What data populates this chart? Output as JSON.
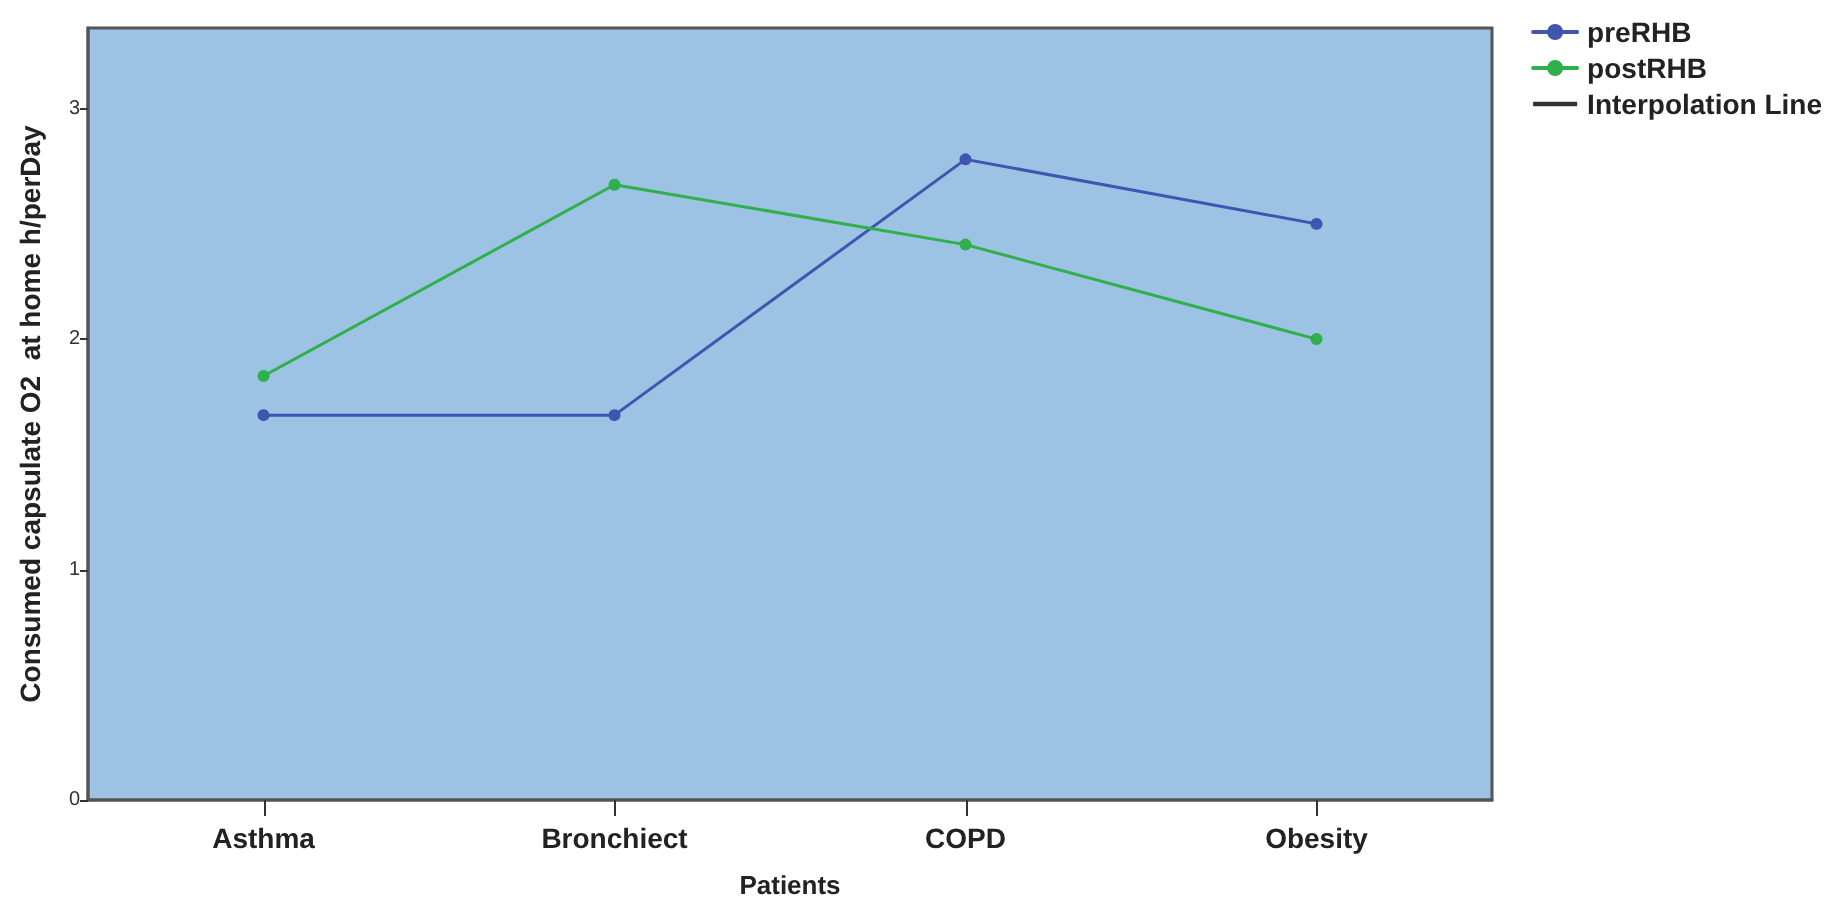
{
  "chart_data": {
    "type": "line",
    "xlabel": "Patients",
    "ylabel": "Consumed capsulate O2  at home h/perDay",
    "categories": [
      "Asthma",
      "Bronchiect",
      "COPD",
      "Obesity"
    ],
    "series": [
      {
        "name": "preRHB",
        "color": "#3f56b0",
        "values": [
          1.67,
          1.67,
          2.78,
          2.5
        ]
      },
      {
        "name": "postRHB",
        "color": "#2fb04a",
        "values": [
          1.84,
          2.67,
          2.41,
          2.0
        ]
      },
      {
        "name": "Interpolation Line",
        "color": "#333333",
        "values": [
          null,
          null,
          null,
          null
        ]
      }
    ],
    "ylim": [
      0,
      3.35
    ],
    "yticks": [
      0,
      1,
      2,
      3
    ],
    "grid": false,
    "legend": "top right",
    "marker": "circle",
    "line_style": "solid"
  }
}
